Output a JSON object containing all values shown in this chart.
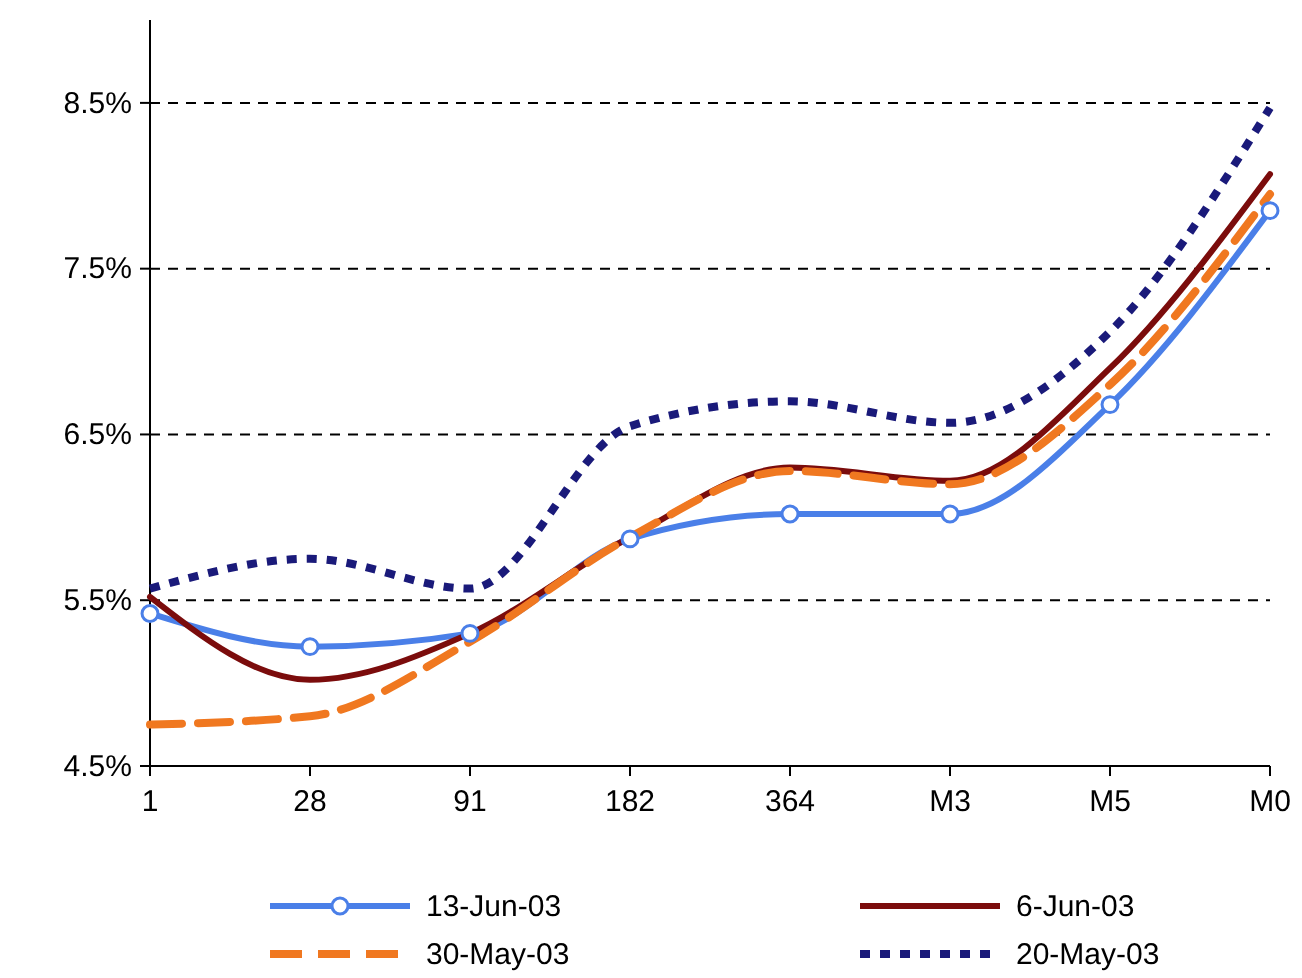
{
  "chart_data": {
    "type": "line",
    "categories": [
      "1",
      "28",
      "91",
      "182",
      "364",
      "M3",
      "M5",
      "M0"
    ],
    "ylim": [
      4.5,
      9.0
    ],
    "yticks": [
      {
        "value": 4.5,
        "label": "4.5%"
      },
      {
        "value": 5.5,
        "label": "5.5%"
      },
      {
        "value": 6.5,
        "label": "6.5%"
      },
      {
        "value": 7.5,
        "label": "7.5%"
      },
      {
        "value": 8.5,
        "label": "8.5%"
      }
    ],
    "grid": "y",
    "legend": "bottom",
    "series": [
      {
        "name": "13-Jun-03",
        "color": "#4a7fe8",
        "marker": "circle",
        "line_style": "solid",
        "values": [
          5.42,
          5.22,
          5.3,
          5.87,
          6.02,
          6.02,
          6.68,
          7.85
        ]
      },
      {
        "name": "6-Jun-03",
        "color": "#7b0c0c",
        "marker": "none",
        "line_style": "solid",
        "values": [
          5.52,
          5.02,
          5.3,
          5.88,
          6.3,
          6.22,
          6.9,
          8.07
        ]
      },
      {
        "name": "30-May-03",
        "color": "#f07820",
        "marker": "none",
        "line_style": "dashed",
        "values": [
          4.75,
          4.8,
          5.25,
          5.88,
          6.28,
          6.2,
          6.8,
          7.95
        ]
      },
      {
        "name": "20-May-03",
        "color": "#1a1a7a",
        "marker": "none",
        "line_style": "dotted",
        "values": [
          5.57,
          5.75,
          5.57,
          6.55,
          6.7,
          6.57,
          7.12,
          8.47
        ]
      }
    ]
  }
}
